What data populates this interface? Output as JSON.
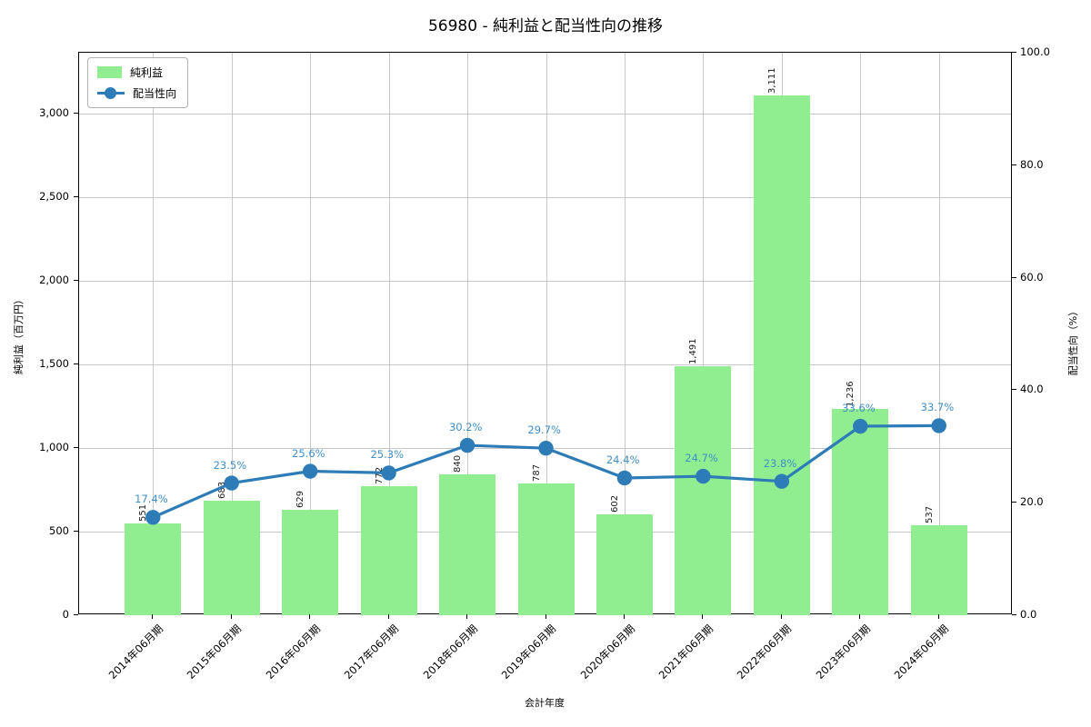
{
  "colors": {
    "bar": "#90ee90",
    "line": "#2d7cb8",
    "pct_label": "#3f8fc9",
    "grid": "#c9c9c9",
    "axis": "#000000",
    "bar_label": "#1a1a1a",
    "background": "#ffffff"
  },
  "chart_data": {
    "type": "combo",
    "title": "56980 - 純利益と配当性向の推移",
    "xlabel": "会計年度",
    "ylabel_left": "純利益（百万円）",
    "ylabel_right": "配当性向（%）",
    "categories": [
      "2014年06月期",
      "2015年06月期",
      "2016年06月期",
      "2017年06月期",
      "2018年06月期",
      "2019年06月期",
      "2020年06月期",
      "2021年06月期",
      "2022年06月期",
      "2023年06月期",
      "2024年06月期"
    ],
    "series": [
      {
        "name": "純利益",
        "type": "bar",
        "axis": "left",
        "unit": "百万円",
        "values": [
          551,
          683,
          629,
          772,
          840,
          787,
          602,
          1491,
          3111,
          1236,
          537
        ],
        "labels": [
          "551",
          "683",
          "629",
          "772",
          "840",
          "787",
          "602",
          "1,491",
          "3,111",
          "1,236",
          "537"
        ]
      },
      {
        "name": "配当性向",
        "type": "line",
        "axis": "right",
        "unit": "%",
        "values": [
          17.4,
          23.5,
          25.6,
          25.3,
          30.2,
          29.7,
          24.4,
          24.7,
          23.8,
          33.6,
          33.7
        ],
        "labels": [
          "17.4%",
          "23.5%",
          "25.6%",
          "25.3%",
          "30.2%",
          "29.7%",
          "24.4%",
          "24.7%",
          "23.8%",
          "33.6%",
          "33.7%"
        ]
      }
    ],
    "y_left": {
      "tick_labels": [
        "0",
        "500",
        "1,000",
        "1,500",
        "2,000",
        "2,500",
        "3,000"
      ],
      "tick_values": [
        0,
        500,
        1000,
        1500,
        2000,
        2500,
        3000
      ],
      "axis_max": 3364
    },
    "y_right": {
      "tick_labels": [
        "0.0",
        "20.0",
        "40.0",
        "60.0",
        "80.0",
        "100.0"
      ],
      "tick_values": [
        0,
        20,
        40,
        60,
        80,
        100
      ],
      "axis_max": 100
    },
    "grid": true,
    "legend_position": "upper left"
  }
}
